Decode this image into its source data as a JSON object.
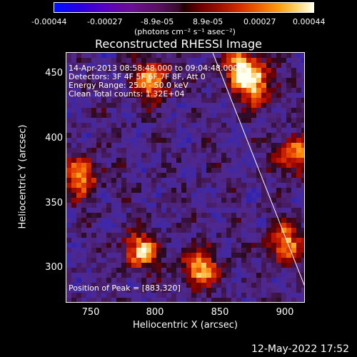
{
  "colorbar": {
    "ticks": [
      "-0.00044",
      "-0.00027",
      "-8.9e-05",
      "8.9e-05",
      "0.00027",
      "0.00044"
    ],
    "unit_label": "(photons cm⁻² s⁻¹ asec⁻²)"
  },
  "title": "Reconstructed RHESSI Image",
  "annotations": {
    "time_range": "14-Apr-2013 08:58:48.000 to 09:04:48.000",
    "detectors": "Detectors: 3F 4F 5F 6F 7F 8F, Att 0",
    "energy": "Energy Range: 25.0 - 50.0 keV",
    "clean": "Clean     Total counts: 1.32E+04",
    "peak": "Position of Peak = [883,320]"
  },
  "axes": {
    "xlabel": "Heliocentric X (arcsec)",
    "ylabel": "Heliocentric Y (arcsec)",
    "xticks": [
      "750",
      "800",
      "850",
      "900"
    ],
    "yticks": [
      "450",
      "400",
      "350",
      "300"
    ]
  },
  "footer": {
    "date": "12-May-2022 17:52"
  },
  "colors": {
    "background": "#000000",
    "foreground": "#ffffff",
    "cold": "#1a10c0",
    "hot": "#fffff0"
  }
}
